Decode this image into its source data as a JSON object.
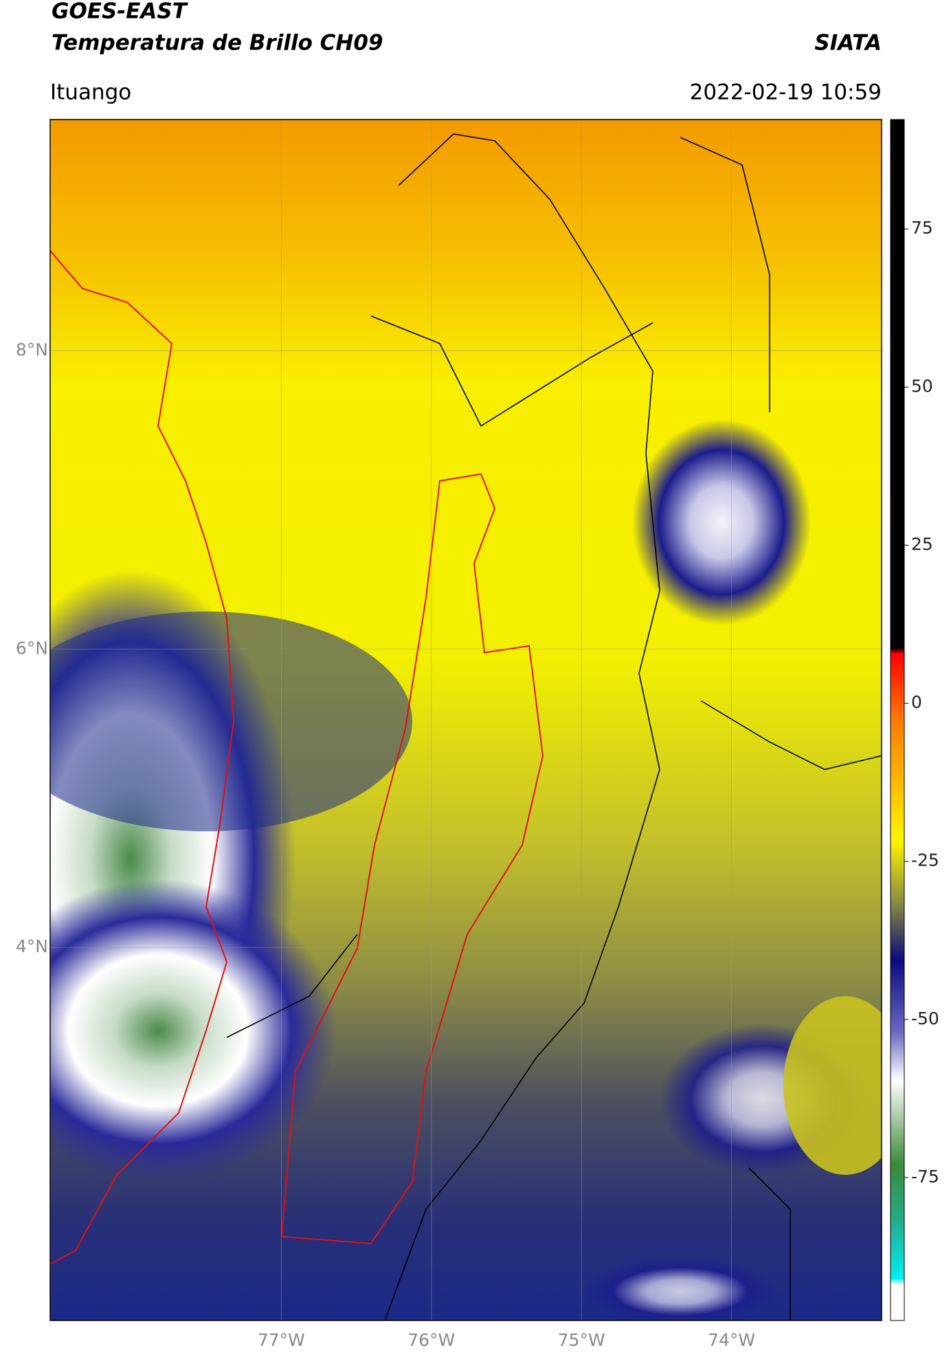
{
  "header": {
    "title": "GOES-EAST",
    "subtitle": "Temperatura de Brillo CH09",
    "agency": "SIATA",
    "location": "Ituango",
    "datetime": "2022-02-19 10:59"
  },
  "map": {
    "xlim": [
      -78.54,
      -73.0
    ],
    "ylim": [
      1.5,
      9.55
    ],
    "xticks": [
      {
        "value": -77,
        "label": "77°W"
      },
      {
        "value": -76,
        "label": "76°W"
      },
      {
        "value": -75,
        "label": "75°W"
      },
      {
        "value": -74,
        "label": "74°W"
      }
    ],
    "yticks": [
      {
        "value": 8,
        "label": "8°N"
      },
      {
        "value": 6,
        "label": "6°N"
      },
      {
        "value": 4,
        "label": "4°N"
      }
    ]
  },
  "colorbar": {
    "lim": [
      -97.6,
      92.3
    ],
    "ticks": [
      75,
      50,
      25,
      0,
      -25,
      -50,
      -75
    ]
  }
}
